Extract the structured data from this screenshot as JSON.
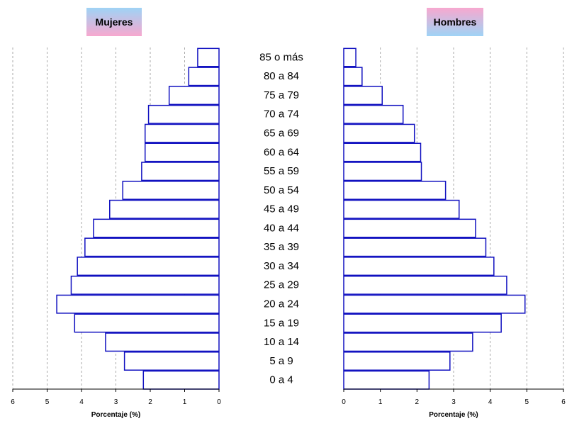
{
  "legend": {
    "women": "Mujeres",
    "men": "Hombres"
  },
  "colors": {
    "bar_stroke": "#1010c0",
    "bar_fill": "#ffffff",
    "grid": "#aaaaaa",
    "axis": "#000000"
  },
  "chart_data": [
    {
      "type": "bar",
      "orientation": "horizontal",
      "direction": "right-to-left",
      "series": [
        {
          "name": "Mujeres",
          "values": [
            2.2,
            2.75,
            3.3,
            4.2,
            4.72,
            4.3,
            4.12,
            3.9,
            3.65,
            3.18,
            2.8,
            2.25,
            2.15,
            2.15,
            2.05,
            1.45,
            0.88,
            0.62
          ]
        }
      ],
      "categories": [
        "0 a 4",
        "5 a 9",
        "10 a 14",
        "15 a 19",
        "20 a 24",
        "25 a 29",
        "30 a 34",
        "35 a 39",
        "40 a 44",
        "45 a 49",
        "50 a 54",
        "55 a 59",
        "60 a 64",
        "65 a 69",
        "70 a 74",
        "75 a 79",
        "80 a 84",
        "85 o más"
      ],
      "xlabel": "Porcentaje (%)",
      "xlim": [
        0,
        6
      ],
      "xticks": [
        "0",
        "1",
        "2",
        "3",
        "4",
        "5",
        "6"
      ],
      "grid": true
    },
    {
      "type": "bar",
      "orientation": "horizontal",
      "direction": "left-to-right",
      "series": [
        {
          "name": "Hombres",
          "values": [
            2.33,
            2.9,
            3.52,
            4.3,
            4.95,
            4.45,
            4.1,
            3.88,
            3.6,
            3.15,
            2.78,
            2.12,
            2.1,
            1.93,
            1.62,
            1.05,
            0.5,
            0.33
          ]
        }
      ],
      "categories": [
        "0 a 4",
        "5 a 9",
        "10 a 14",
        "15 a 19",
        "20 a 24",
        "25 a 29",
        "30 a 34",
        "35 a 39",
        "40 a 44",
        "45 a 49",
        "50 a 54",
        "55 a 59",
        "60 a 64",
        "65 a 69",
        "70 a 74",
        "75 a 79",
        "80 a 84",
        "85 o más"
      ],
      "xlabel": "Porcentaje (%)",
      "xlim": [
        0,
        6
      ],
      "xticks": [
        "0",
        "1",
        "2",
        "3",
        "4",
        "5",
        "6"
      ],
      "grid": true
    }
  ]
}
